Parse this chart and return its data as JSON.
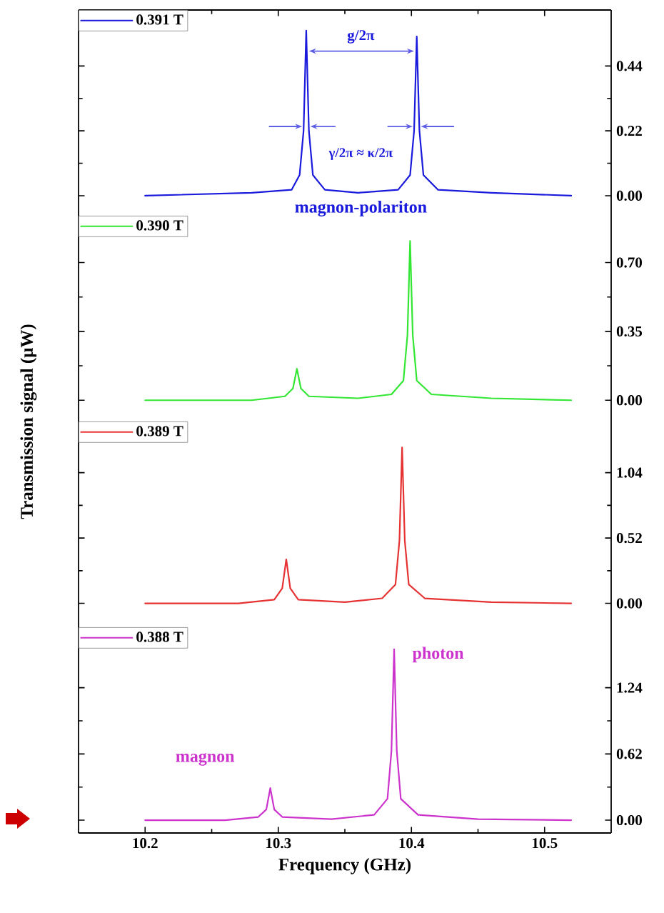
{
  "chart_data": [
    {
      "type": "line",
      "xlim": [
        10.15,
        10.55
      ],
      "xticks": [
        10.2,
        10.3,
        10.4,
        10.5
      ],
      "ylim": [
        -0.068,
        0.63
      ],
      "yticks": [
        {
          "value": 0,
          "label": "0.00"
        },
        {
          "value": 0.22,
          "label": "0.22"
        },
        {
          "value": 0.44,
          "label": "0.44"
        }
      ],
      "tick_labels": "y",
      "legend": "top left",
      "series": [
        {
          "name": "0.391 T",
          "color": "#1a1adc",
          "x": [
            10.2,
            10.28,
            10.31,
            10.316,
            10.319,
            10.321,
            10.323,
            10.326,
            10.335,
            10.36,
            10.39,
            10.399,
            10.402,
            10.404,
            10.406,
            10.409,
            10.42,
            10.46,
            10.52
          ],
          "values": [
            0,
            0.01,
            0.02,
            0.07,
            0.22,
            0.56,
            0.22,
            0.07,
            0.02,
            0.01,
            0.02,
            0.07,
            0.22,
            0.54,
            0.22,
            0.07,
            0.02,
            0.01,
            0
          ]
        }
      ],
      "annotations": [
        "g/2π",
        "γ/2π ≈ κ/2π",
        "magnon-polariton"
      ]
    },
    {
      "type": "line",
      "xlim": [
        10.15,
        10.55
      ],
      "xticks": [
        10.2,
        10.3,
        10.4,
        10.5
      ],
      "ylim": [
        -0.108,
        0.938
      ],
      "yticks": [
        {
          "value": 0,
          "label": "0.00"
        },
        {
          "value": 0.35,
          "label": "0.35"
        },
        {
          "value": 0.7,
          "label": "0.70"
        }
      ],
      "tick_labels": "y",
      "legend": "top left",
      "ylabel": "Transmission signal (μW)",
      "series": [
        {
          "name": "0.390 T",
          "color": "#33e633",
          "x": [
            10.2,
            10.28,
            10.305,
            10.311,
            10.314,
            10.317,
            10.323,
            10.36,
            10.385,
            10.394,
            10.397,
            10.399,
            10.401,
            10.404,
            10.415,
            10.46,
            10.52
          ],
          "values": [
            0,
            0,
            0.02,
            0.06,
            0.16,
            0.06,
            0.02,
            0.01,
            0.03,
            0.1,
            0.33,
            0.81,
            0.33,
            0.1,
            0.03,
            0.01,
            0
          ]
        }
      ]
    },
    {
      "type": "line",
      "xlim": [
        10.15,
        10.55
      ],
      "xticks": [
        10.2,
        10.3,
        10.4,
        10.5
      ],
      "ylim": [
        -0.19,
        1.447
      ],
      "yticks": [
        {
          "value": 0,
          "label": "0.00"
        },
        {
          "value": 0.52,
          "label": "0.52"
        },
        {
          "value": 1.04,
          "label": "1.04"
        }
      ],
      "tick_labels": "y",
      "legend": "top left",
      "series": [
        {
          "name": "0.389 T",
          "color": "#e63232",
          "x": [
            10.2,
            10.27,
            10.297,
            10.303,
            10.306,
            10.309,
            10.315,
            10.35,
            10.378,
            10.388,
            10.391,
            10.393,
            10.395,
            10.398,
            10.41,
            10.46,
            10.52
          ],
          "values": [
            0,
            0,
            0.03,
            0.12,
            0.35,
            0.12,
            0.03,
            0.01,
            0.04,
            0.15,
            0.5,
            1.24,
            0.5,
            0.15,
            0.04,
            0.01,
            0
          ]
        }
      ]
    },
    {
      "type": "line",
      "xlim": [
        10.15,
        10.55
      ],
      "xticks": [
        10.2,
        10.3,
        10.4,
        10.5
      ],
      "ylim": [
        -0.12,
        1.806
      ],
      "yticks": [
        {
          "value": 0,
          "label": "0.00"
        },
        {
          "value": 0.62,
          "label": "0.62"
        },
        {
          "value": 1.24,
          "label": "1.24"
        }
      ],
      "legend": "top left",
      "xlabel": "Frequency (GHz)",
      "series": [
        {
          "name": "0.388 T",
          "color": "#cc33cc",
          "x": [
            10.2,
            10.26,
            10.285,
            10.291,
            10.294,
            10.297,
            10.303,
            10.34,
            10.372,
            10.382,
            10.385,
            10.387,
            10.389,
            10.392,
            10.405,
            10.45,
            10.52
          ],
          "values": [
            0,
            0,
            0.03,
            0.1,
            0.3,
            0.1,
            0.03,
            0.01,
            0.05,
            0.2,
            0.65,
            1.6,
            0.65,
            0.2,
            0.05,
            0.01,
            0
          ]
        }
      ],
      "annotations": [
        "magnon",
        "photon"
      ]
    }
  ]
}
